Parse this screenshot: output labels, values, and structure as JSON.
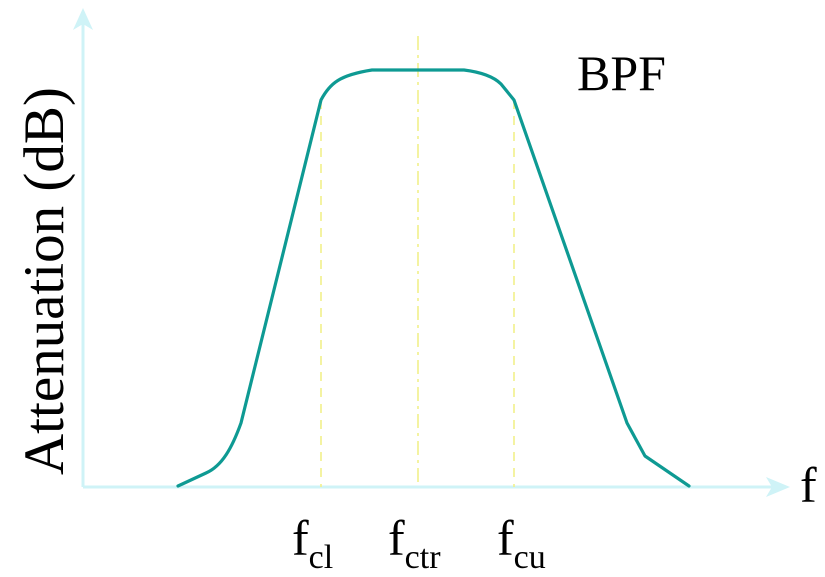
{
  "diagram": {
    "title": "BPF",
    "y_axis_label": "Attenuation (dB)",
    "x_axis_label": "f",
    "markers": [
      {
        "base": "f",
        "sub": "cl"
      },
      {
        "base": "f",
        "sub": "ctr"
      },
      {
        "base": "f",
        "sub": "cu"
      }
    ],
    "colors": {
      "curve": "#0e9a93",
      "axes": "#cff3f7",
      "guides": "#f2f08a",
      "text": "#000000"
    }
  }
}
